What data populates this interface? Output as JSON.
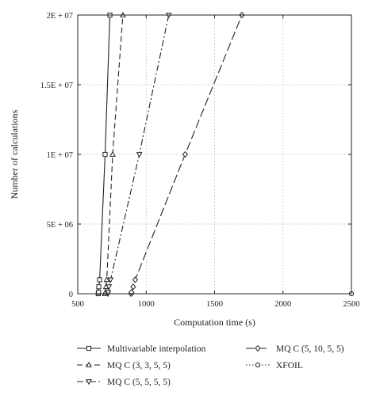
{
  "chart_data": {
    "type": "line",
    "xlabel": "Computation time (s)",
    "ylabel": "Number of calculations",
    "xlim": [
      500,
      2500
    ],
    "ylim": [
      0,
      20000000
    ],
    "x_ticks": [
      500,
      1000,
      1500,
      2000,
      2500
    ],
    "x_tick_labels": [
      "500",
      "1000",
      "1500",
      "2000",
      "2500"
    ],
    "y_ticks": [
      0,
      5000000,
      10000000,
      15000000,
      20000000
    ],
    "y_tick_labels": [
      "0",
      "5E + 06",
      "1E + 07",
      "1.5E + 07",
      "2E + 07"
    ],
    "grid": true,
    "legend_placement": "bottom, below plot, two columns",
    "series": [
      {
        "name": "Multivariable interpolation",
        "marker": "square",
        "dash": "solid",
        "color": "#222222",
        "x": [
          650,
          652,
          654,
          660,
          700,
          735
        ],
        "y": [
          0,
          100000,
          500000,
          1000000,
          10000000,
          20000000
        ]
      },
      {
        "name": "MQ C (3, 3, 5, 5)",
        "marker": "triangle-up",
        "dash": "dash",
        "color": "#222222",
        "x": [
          700,
          702,
          706,
          712,
          755,
          830
        ],
        "y": [
          0,
          100000,
          500000,
          1000000,
          10000000,
          20000000
        ]
      },
      {
        "name": "MQ C (5, 5, 5, 5)",
        "marker": "triangle-down",
        "dash": "dashdot",
        "color": "#222222",
        "x": [
          720,
          722,
          728,
          740,
          950,
          1165
        ],
        "y": [
          0,
          100000,
          500000,
          1000000,
          10000000,
          20000000
        ]
      },
      {
        "name": "MQ C (5, 10, 5, 5)",
        "marker": "diamond",
        "dash": "longdash",
        "color": "#222222",
        "x": [
          890,
          893,
          905,
          920,
          1285,
          1700
        ],
        "y": [
          0,
          100000,
          500000,
          1000000,
          10000000,
          20000000
        ]
      },
      {
        "name": "XFOIL",
        "marker": "circle",
        "dash": "dot",
        "color": "#222222",
        "x": [
          2500
        ],
        "y": [
          0
        ]
      }
    ]
  }
}
